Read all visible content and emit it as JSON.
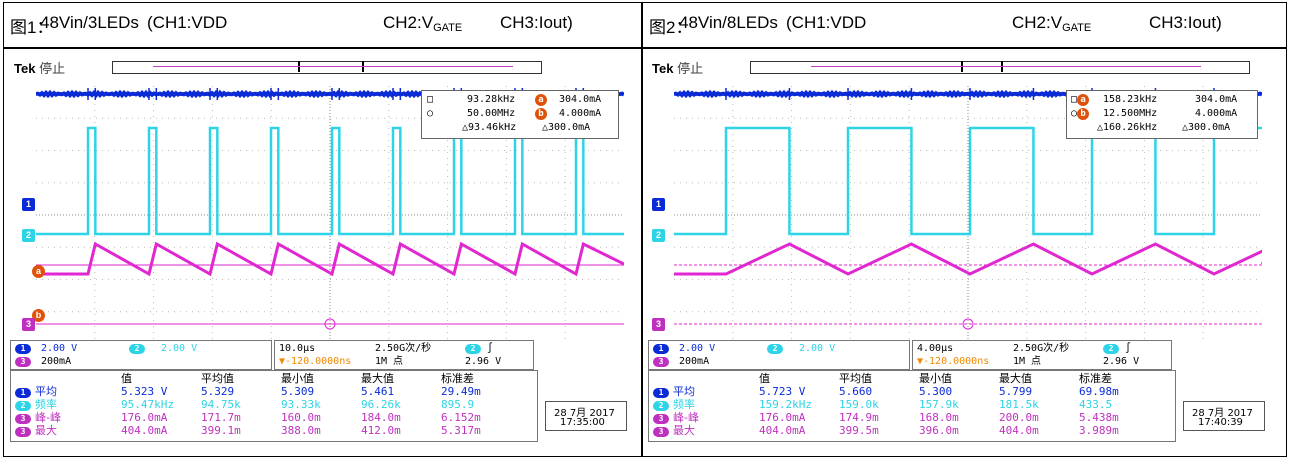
{
  "panels": [
    {
      "title": {
        "fig": "图1：",
        "main": "48Vin/3LEDs",
        "ch1": "(CH1:VDD",
        "ch2": "CH2:V",
        "ch2sub": "GATE",
        "ch3": "CH3:Iout)"
      },
      "scope": {
        "brand": "Tek",
        "status": "停止",
        "cursor": {
          "row1": [
            "93.28kHz",
            "304.0mA"
          ],
          "row2": [
            "50.00MHz",
            "4.000mA"
          ],
          "row3": [
            "△93.46kHz",
            "△300.0mA"
          ]
        },
        "ch_scale": {
          "ch1": "2.00 V",
          "ch2": "2.00 V",
          "ch3": "200mA"
        },
        "timebase": "10.0μs",
        "trig_pos": "▼-120.0000ns",
        "sample_rate": "2.50G次/秒",
        "record": "1M 点",
        "trig_level": "2.96 V",
        "measure": {
          "headers": [
            "值",
            "平均值",
            "最小值",
            "最大值",
            "标准差"
          ],
          "rows": [
            {
              "label": "平均",
              "values": [
                "5.323 V",
                "5.329",
                "5.309",
                "5.461",
                "29.49m"
              ]
            },
            {
              "label": "频率",
              "values": [
                "95.47kHz",
                "94.75k",
                "93.33k",
                "96.26k",
                "895.9"
              ]
            },
            {
              "label": "峰-峰",
              "values": [
                "176.0mA",
                "171.7m",
                "160.0m",
                "184.0m",
                "6.152m"
              ]
            },
            {
              "label": "最大",
              "values": [
                "404.0mA",
                "399.1m",
                "388.0m",
                "412.0m",
                "5.317m"
              ]
            }
          ]
        },
        "date": "28 7月 2017",
        "time": "17:35:00"
      }
    },
    {
      "title": {
        "fig": "图2：",
        "main": "48Vin/8LEDs",
        "ch1": "(CH1:VDD",
        "ch2": "CH2:V",
        "ch2sub": "GATE",
        "ch3": "CH3:Iout)"
      },
      "scope": {
        "brand": "Tek",
        "status": "停止",
        "cursor": {
          "row1": [
            "158.23kHz",
            "304.0mA"
          ],
          "row2": [
            "12.500MHz",
            "4.000mA"
          ],
          "row3": [
            "△160.26kHz",
            "△300.0mA"
          ]
        },
        "ch_scale": {
          "ch1": "2.00 V",
          "ch2": "2.00 V",
          "ch3": "200mA"
        },
        "timebase": "4.00μs",
        "trig_pos": "▼-120.0000ns",
        "sample_rate": "2.50G次/秒",
        "record": "1M 点",
        "trig_level": "2.96 V",
        "measure": {
          "headers": [
            "值",
            "平均值",
            "最小值",
            "最大值",
            "标准差"
          ],
          "rows": [
            {
              "label": "平均",
              "values": [
                "5.723 V",
                "5.660",
                "5.300",
                "5.799",
                "69.98m"
              ]
            },
            {
              "label": "频率",
              "values": [
                "159.2kHz",
                "159.0k",
                "157.9k",
                "181.5k",
                "433.5"
              ]
            },
            {
              "label": "峰-峰",
              "values": [
                "176.0mA",
                "174.9m",
                "168.0m",
                "200.0m",
                "5.438m"
              ]
            },
            {
              "label": "最大",
              "values": [
                "404.0mA",
                "399.5m",
                "396.0m",
                "404.0m",
                "3.989m"
              ]
            }
          ]
        },
        "date": "28 7月 2017",
        "time": "17:40:39"
      }
    }
  ],
  "colors": {
    "ch1": "#0a2bd6",
    "ch2": "#2dd4e6",
    "ch3": "#e027d0",
    "marker": "#e0520a",
    "trigger": "#f08a00"
  }
}
